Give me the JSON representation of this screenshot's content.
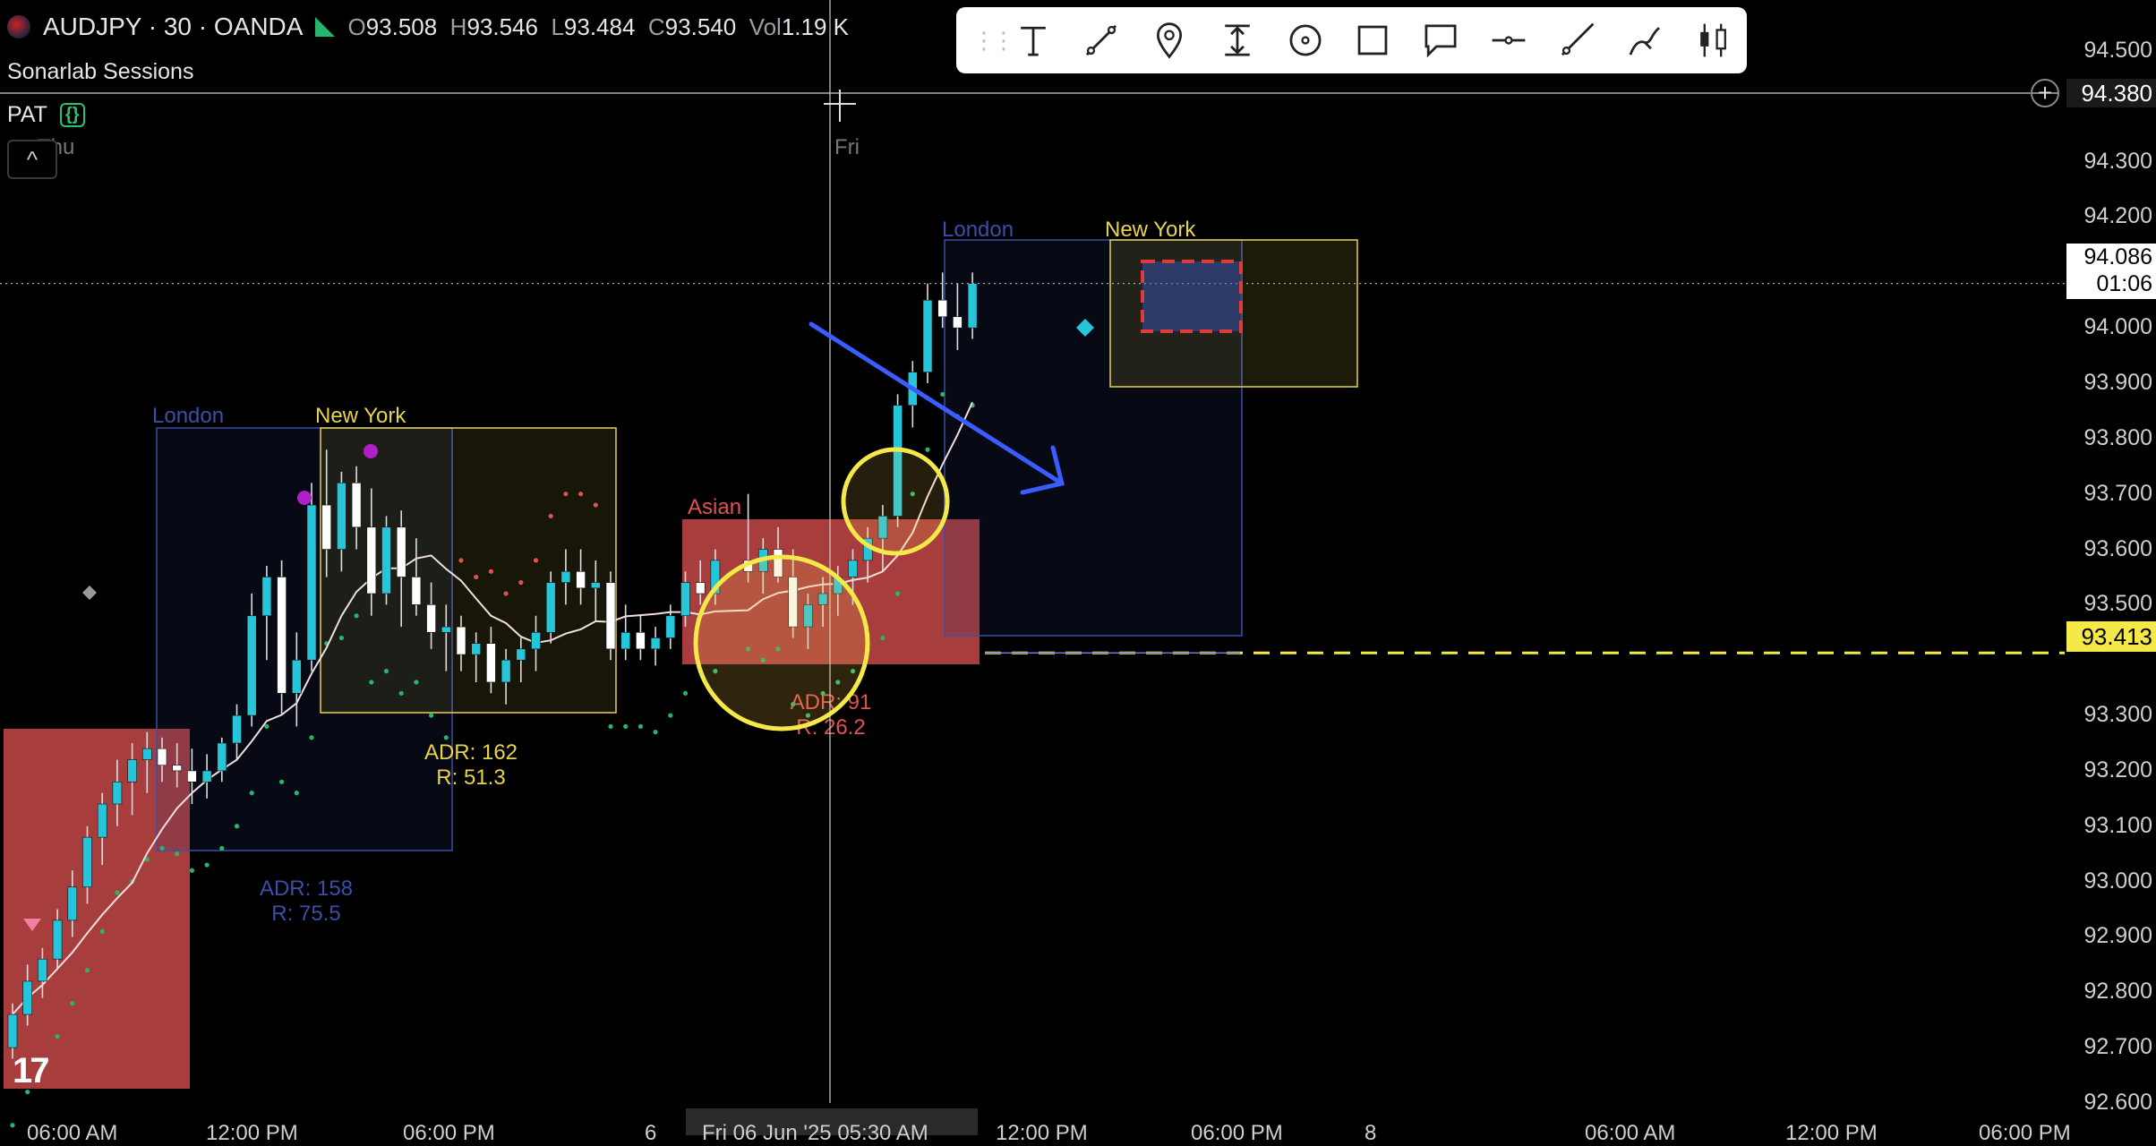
{
  "legend": {
    "symbol": "AUDJPY · 30 · OANDA",
    "open_label": "O",
    "open": "93.508",
    "high_label": "H",
    "high": "93.546",
    "low_label": "L",
    "low": "93.484",
    "close_label": "C",
    "close": "93.540",
    "volume_label": "Vol",
    "volume": "1.19 K",
    "indicator_1": "Sonarlab Sessions",
    "indicator_2": "PAT",
    "indicator_2_badge": "{}",
    "collapse_glyph": "^",
    "colors": {
      "up": "#26c6da",
      "down": "#ffffff",
      "market_open": "#27b56a"
    }
  },
  "toolbar": {
    "grip": "⋮⋮",
    "tools": [
      "text-icon",
      "trend-line-icon",
      "pin-icon",
      "price-range-icon",
      "circle-icon",
      "rectangle-icon",
      "callout-icon",
      "horizontal-line-icon",
      "ray-icon",
      "brush-icon",
      "candles-icon"
    ]
  },
  "axis": {
    "price_ticks": [
      "94.500",
      "94.300",
      "94.200",
      "94.000",
      "93.900",
      "93.800",
      "93.700",
      "93.600",
      "93.500",
      "93.300",
      "93.200",
      "93.100",
      "93.000",
      "92.900",
      "92.800",
      "92.700",
      "92.600"
    ],
    "time_labels": [
      "06:00 AM",
      "12:00 PM",
      "06:00 PM",
      "6",
      "Fri 06 Jun '25   05:30 AM",
      "12:00 PM",
      "06:00 PM",
      "8",
      "06:00 AM",
      "12:00 PM",
      "06:00 PM"
    ],
    "crosshair_price": "94.380",
    "plus_glyph": "+",
    "last_price": "94.086",
    "countdown": "01:06",
    "level_price": "93.413",
    "day_labels": [
      "Thu",
      "Fri"
    ]
  },
  "sessions": {
    "london_1": "London",
    "newyork_1": "New York",
    "asian": "Asian",
    "london_2": "London",
    "newyork_2": "New York",
    "adr_london": "ADR: 158",
    "r_london": "R: 75.5",
    "adr_ny": "ADR: 162",
    "r_ny": "R: 51.3",
    "adr_asian": "ADR: 91",
    "r_asian": "R: 26.2",
    "colors": {
      "london": "#3b4fa8",
      "newyork": "#e8d34a",
      "asian": "#e05252"
    }
  },
  "chart_data": {
    "type": "candlestick",
    "symbol": "AUDJPY",
    "interval": "30",
    "ylim": [
      92.6,
      94.55
    ],
    "candles": [
      [
        92.7,
        92.78,
        92.68,
        92.76
      ],
      [
        92.76,
        92.85,
        92.74,
        92.82
      ],
      [
        92.82,
        92.88,
        92.79,
        92.86
      ],
      [
        92.86,
        92.95,
        92.84,
        92.93
      ],
      [
        92.93,
        93.02,
        92.9,
        92.99
      ],
      [
        92.99,
        93.1,
        92.96,
        93.08
      ],
      [
        93.08,
        93.16,
        93.03,
        93.14
      ],
      [
        93.14,
        93.22,
        93.1,
        93.18
      ],
      [
        93.18,
        93.25,
        93.12,
        93.22
      ],
      [
        93.22,
        93.27,
        93.16,
        93.24
      ],
      [
        93.24,
        93.26,
        93.18,
        93.21
      ],
      [
        93.21,
        93.25,
        93.17,
        93.2
      ],
      [
        93.2,
        93.24,
        93.14,
        93.18
      ],
      [
        93.18,
        93.23,
        93.15,
        93.2
      ],
      [
        93.2,
        93.26,
        93.18,
        93.25
      ],
      [
        93.25,
        93.32,
        93.22,
        93.3
      ],
      [
        93.3,
        93.52,
        93.28,
        93.48
      ],
      [
        93.48,
        93.57,
        93.4,
        93.55
      ],
      [
        93.55,
        93.58,
        93.3,
        93.34
      ],
      [
        93.34,
        93.45,
        93.28,
        93.4
      ],
      [
        93.4,
        93.72,
        93.38,
        93.68
      ],
      [
        93.68,
        93.78,
        93.55,
        93.6
      ],
      [
        93.6,
        93.74,
        93.56,
        93.72
      ],
      [
        93.72,
        93.75,
        93.6,
        93.64
      ],
      [
        93.64,
        93.71,
        93.48,
        93.52
      ],
      [
        93.52,
        93.66,
        93.5,
        93.64
      ],
      [
        93.64,
        93.67,
        93.46,
        93.55
      ],
      [
        93.55,
        93.62,
        93.48,
        93.5
      ],
      [
        93.5,
        93.54,
        93.42,
        93.45
      ],
      [
        93.45,
        93.5,
        93.38,
        93.46
      ],
      [
        93.46,
        93.48,
        93.38,
        93.41
      ],
      [
        93.41,
        93.45,
        93.36,
        93.43
      ],
      [
        93.43,
        93.46,
        93.34,
        93.36
      ],
      [
        93.36,
        93.42,
        93.32,
        93.4
      ],
      [
        93.4,
        93.44,
        93.36,
        93.42
      ],
      [
        93.42,
        93.48,
        93.38,
        93.45
      ],
      [
        93.45,
        93.56,
        93.43,
        93.54
      ],
      [
        93.54,
        93.6,
        93.5,
        93.56
      ],
      [
        93.56,
        93.6,
        93.5,
        93.53
      ],
      [
        93.53,
        93.58,
        93.47,
        93.54
      ],
      [
        93.54,
        93.56,
        93.4,
        93.42
      ],
      [
        93.42,
        93.5,
        93.4,
        93.45
      ],
      [
        93.45,
        93.48,
        93.4,
        93.42
      ],
      [
        93.42,
        93.46,
        93.39,
        93.44
      ],
      [
        93.44,
        93.5,
        93.42,
        93.48
      ],
      [
        93.48,
        93.56,
        93.46,
        93.54
      ],
      [
        93.54,
        93.58,
        93.5,
        93.52
      ],
      [
        93.52,
        93.6,
        93.5,
        93.58
      ],
      [
        93.58,
        93.7,
        93.54,
        93.56
      ],
      [
        93.56,
        93.62,
        93.52,
        93.6
      ],
      [
        93.6,
        93.64,
        93.54,
        93.55
      ],
      [
        93.55,
        93.6,
        93.44,
        93.46
      ],
      [
        93.46,
        93.52,
        93.42,
        93.5
      ],
      [
        93.5,
        93.55,
        93.46,
        93.52
      ],
      [
        93.52,
        93.57,
        93.48,
        93.55
      ],
      [
        93.55,
        93.6,
        93.5,
        93.58
      ],
      [
        93.58,
        93.64,
        93.54,
        93.62
      ],
      [
        93.62,
        93.68,
        93.56,
        93.66
      ],
      [
        93.66,
        93.88,
        93.64,
        93.86
      ],
      [
        93.86,
        93.94,
        93.82,
        93.92
      ],
      [
        93.92,
        94.08,
        93.9,
        94.05
      ],
      [
        94.05,
        94.1,
        94.0,
        94.02
      ],
      [
        94.02,
        94.08,
        93.96,
        94.0
      ],
      [
        94.0,
        94.1,
        93.98,
        94.08
      ],
      [
        93.508,
        93.546,
        93.484,
        93.54
      ]
    ],
    "key_level": 93.413
  }
}
